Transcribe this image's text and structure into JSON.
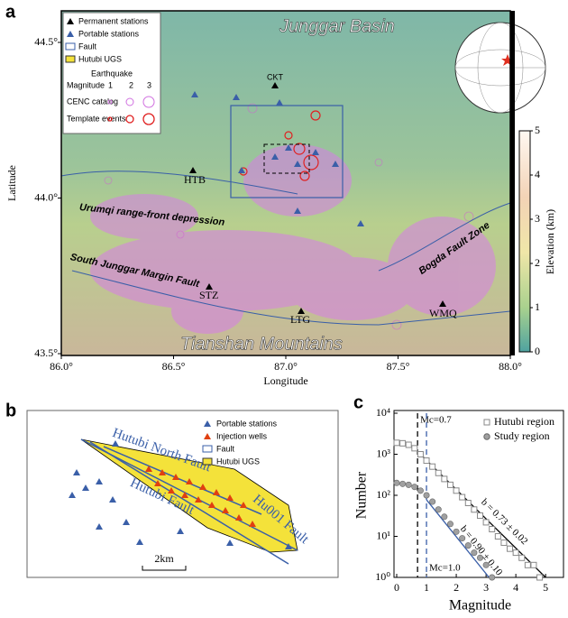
{
  "map": {
    "panel_label": "a",
    "regions": [
      "Junggar Basin",
      "Tianshan Mountains",
      "Urumqi range-front depression",
      "South Junggar Margin Fault",
      "Bogda Fault Zone"
    ],
    "stations": [
      "CKT",
      "HTB",
      "STZ",
      "LTG",
      "WMQ"
    ],
    "x_axis": {
      "title": "Longitude",
      "ticks": [
        "86.0°",
        "86.5°",
        "87.0°",
        "87.5°",
        "88.0°"
      ]
    },
    "y_axis": {
      "title": "Latitude",
      "ticks": [
        "43.5°",
        "44.0°",
        "44.5°"
      ]
    },
    "legend": {
      "items": [
        "Permanent stations",
        "Portable stations",
        "Fault",
        "Hutubi UGS"
      ],
      "earthquake": "Earthquake",
      "magnitude": "Magnitude",
      "magnitudes": [
        "1",
        "2",
        "3"
      ],
      "rows": [
        "CENC catalog",
        "Template events"
      ]
    },
    "colorbar": {
      "title": "Elevation (km)",
      "ticks": [
        0,
        1,
        2,
        3,
        4,
        5
      ]
    }
  },
  "diagram": {
    "panel_label": "b",
    "legend": [
      "Portable stations",
      "Injection wells",
      "Fault",
      "Hutubi UGS"
    ],
    "faults": [
      "Hutubi North Fault",
      "Hutubi Fault",
      "Hu001 Fault"
    ],
    "scale": "2km"
  },
  "chart_data": {
    "type": "scatter",
    "panel_label": "c",
    "x_label": "Magnitude",
    "y_label": "Number",
    "log_y": true,
    "xlim": [
      0,
      5.6
    ],
    "xticks": [
      0,
      1,
      2,
      3,
      4,
      5
    ],
    "ylim": [
      1,
      10000
    ],
    "yticks": [
      {
        "value": 1,
        "label": "10⁰"
      },
      {
        "value": 10,
        "label": "10¹"
      },
      {
        "value": 100,
        "label": "10²"
      },
      {
        "value": 1000,
        "label": "10³"
      },
      {
        "value": 10000,
        "label": "10⁴"
      }
    ],
    "legend": "upper right",
    "series": [
      {
        "name": "Hutubi region",
        "color": "#888888",
        "marker": "square",
        "x": [
          0,
          0.2,
          0.4,
          0.6,
          0.8,
          1.0,
          1.2,
          1.4,
          1.6,
          1.8,
          2.0,
          2.2,
          2.4,
          2.6,
          2.8,
          3.0,
          3.2,
          3.4,
          3.6,
          3.8,
          4.0,
          4.2,
          4.4,
          4.6,
          4.8
        ],
        "values": [
          1900,
          1850,
          1700,
          1400,
          1000,
          700,
          500,
          350,
          250,
          180,
          130,
          90,
          65,
          45,
          32,
          22,
          15,
          10,
          7,
          5,
          4,
          3,
          2,
          2,
          1
        ]
      },
      {
        "name": "Study region",
        "color": "#a0a0a0",
        "marker": "circle",
        "x": [
          0,
          0.2,
          0.4,
          0.6,
          0.8,
          1.0,
          1.2,
          1.4,
          1.6,
          1.8,
          2.0,
          2.2,
          2.4,
          2.6,
          2.8,
          3.0,
          3.2
        ],
        "values": [
          200,
          190,
          180,
          160,
          130,
          100,
          70,
          45,
          30,
          20,
          13,
          9,
          6,
          4,
          3,
          2,
          1
        ]
      }
    ],
    "fits": [
      {
        "label": "b = 0.73 ± 0.02",
        "color": "#000000",
        "x": [
          0.7,
          5.0
        ],
        "values": [
          1170,
          1
        ]
      },
      {
        "label": "b = 0.90 ± 0.10",
        "color": "#3a5fa8",
        "x": [
          1.0,
          3.1
        ],
        "values": [
          78,
          1
        ]
      }
    ],
    "mc": [
      {
        "value": 0.7,
        "label": "Mc=0.7",
        "color": "#000000"
      },
      {
        "value": 1.0,
        "label": "Mc=1.0",
        "color": "#3a5fa8"
      }
    ]
  }
}
